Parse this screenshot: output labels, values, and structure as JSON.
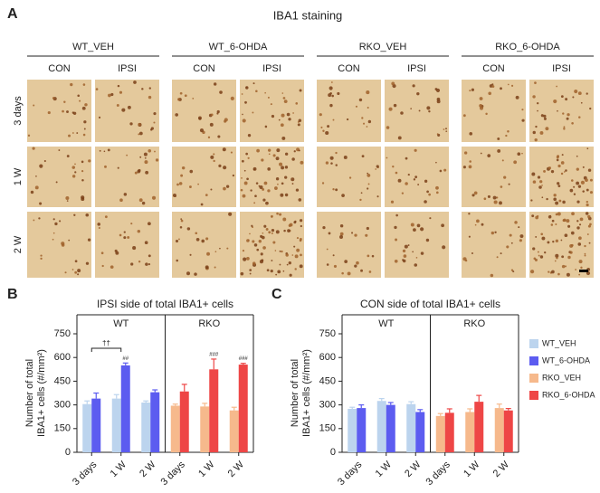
{
  "panel_a": {
    "label": "A",
    "title": "IBA1 staining",
    "groups": [
      {
        "name": "WT_VEH",
        "columns": [
          "CON",
          "IPSI"
        ]
      },
      {
        "name": "WT_6-OHDA",
        "columns": [
          "CON",
          "IPSI"
        ]
      },
      {
        "name": "RKO_VEH",
        "columns": [
          "CON",
          "IPSI"
        ]
      },
      {
        "name": "RKO_6-OHDA",
        "columns": [
          "CON",
          "IPSI"
        ]
      }
    ],
    "rows": [
      "3 days",
      "1 W",
      "2 W"
    ]
  },
  "chart_data": [
    {
      "type": "bar",
      "panel_label": "B",
      "title": "IPSI side of total IBA1+ cells",
      "y_label": [
        "Number of total",
        "IBA1+ cells (#/mm²)"
      ],
      "groups": [
        "WT",
        "RKO"
      ],
      "categories": [
        "3 days",
        "1 W",
        "2 W",
        "3 days",
        "1 W",
        "2 W"
      ],
      "series": [
        {
          "name": "WT_VEH",
          "color": "#bcd4ee",
          "values": [
            305,
            340,
            315,
            null,
            null,
            null
          ],
          "errors": [
            20,
            25,
            10,
            null,
            null,
            null
          ]
        },
        {
          "name": "WT_6-OHDA",
          "color": "#5c5cf0",
          "values": [
            340,
            550,
            380,
            null,
            null,
            null
          ],
          "errors": [
            35,
            15,
            15,
            null,
            null,
            null
          ]
        },
        {
          "name": "RKO_VEH",
          "color": "#f6b98c",
          "values": [
            null,
            null,
            null,
            295,
            290,
            265
          ],
          "errors": [
            null,
            null,
            null,
            10,
            20,
            20
          ]
        },
        {
          "name": "RKO_6-OHDA",
          "color": "#ee4646",
          "values": [
            null,
            null,
            null,
            385,
            525,
            555
          ],
          "errors": [
            null,
            null,
            null,
            45,
            65,
            8
          ]
        }
      ],
      "ylim": [
        0,
        750
      ],
      "yticks": [
        0,
        150,
        300,
        450,
        600,
        750
      ],
      "annotations": [
        "††",
        "##",
        "###",
        "###"
      ]
    },
    {
      "type": "bar",
      "panel_label": "C",
      "title": "CON side of total IBA1+ cells",
      "y_label": [
        "Number of total",
        "IBA1+ cells (#/mm²)"
      ],
      "groups": [
        "WT",
        "RKO"
      ],
      "categories": [
        "3 days",
        "1 W",
        "2 W",
        "3 days",
        "1 W",
        "2 W"
      ],
      "series": [
        {
          "name": "WT_VEH",
          "color": "#bcd4ee",
          "values": [
            275,
            325,
            305,
            null,
            null,
            null
          ],
          "errors": [
            10,
            15,
            15,
            null,
            null,
            null
          ]
        },
        {
          "name": "WT_6-OHDA",
          "color": "#5c5cf0",
          "values": [
            280,
            300,
            255,
            null,
            null,
            null
          ],
          "errors": [
            20,
            15,
            15,
            null,
            null,
            null
          ]
        },
        {
          "name": "RKO_VEH",
          "color": "#f6b98c",
          "values": [
            null,
            null,
            null,
            230,
            255,
            280
          ],
          "errors": [
            null,
            null,
            null,
            15,
            20,
            25
          ]
        },
        {
          "name": "RKO_6-OHDA",
          "color": "#ee4646",
          "values": [
            null,
            null,
            null,
            250,
            320,
            265
          ],
          "errors": [
            null,
            null,
            null,
            25,
            40,
            12
          ]
        }
      ],
      "ylim": [
        0,
        750
      ],
      "yticks": [
        0,
        150,
        300,
        450,
        600,
        750
      ]
    }
  ]
}
